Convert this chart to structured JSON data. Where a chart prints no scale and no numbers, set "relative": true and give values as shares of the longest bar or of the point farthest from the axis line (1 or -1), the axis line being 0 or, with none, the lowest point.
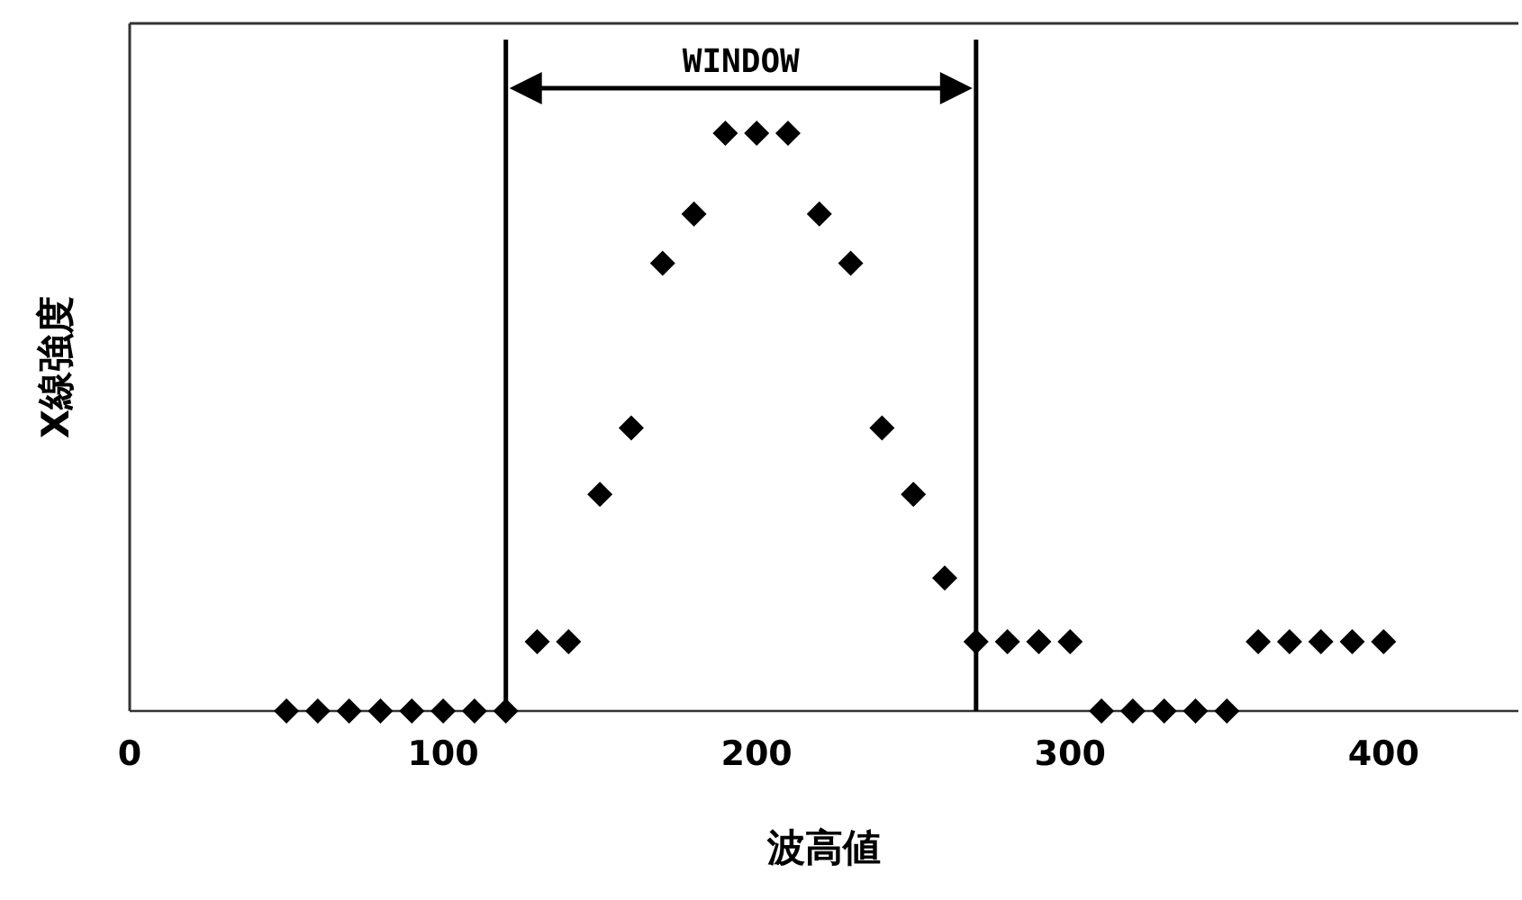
{
  "chart_data": {
    "type": "scatter",
    "relative": true,
    "xlabel": "波高値",
    "ylabel": "X線強度",
    "xlim": [
      0,
      443
    ],
    "xticks": [
      0,
      100,
      200,
      300,
      400
    ],
    "x": [
      50,
      60,
      70,
      80,
      90,
      100,
      110,
      120,
      130,
      140,
      150,
      160,
      170,
      180,
      190,
      200,
      210,
      220,
      230,
      240,
      250,
      260,
      270,
      280,
      290,
      300,
      310,
      320,
      330,
      340,
      350,
      360,
      370,
      380,
      390,
      400
    ],
    "series": [
      {
        "color": "#000000",
        "values": [
          0,
          0,
          0,
          0,
          0,
          0,
          0,
          0,
          0.12,
          0.12,
          0.375,
          0.49,
          0.775,
          0.86,
          1,
          1,
          1,
          0.86,
          0.775,
          0.49,
          0.375,
          0.23,
          0.12,
          0.12,
          0.12,
          0.12,
          0,
          0,
          0,
          0,
          0,
          0.12,
          0.12,
          0.12,
          0.12,
          0.12
        ]
      }
    ],
    "marker": "diamond",
    "grid": false,
    "ref_lines": [
      {
        "axis": "x",
        "value": 120,
        "color": "#000000"
      },
      {
        "axis": "x",
        "value": 270,
        "color": "#000000"
      }
    ],
    "annotations": [
      "WINDOW"
    ]
  }
}
